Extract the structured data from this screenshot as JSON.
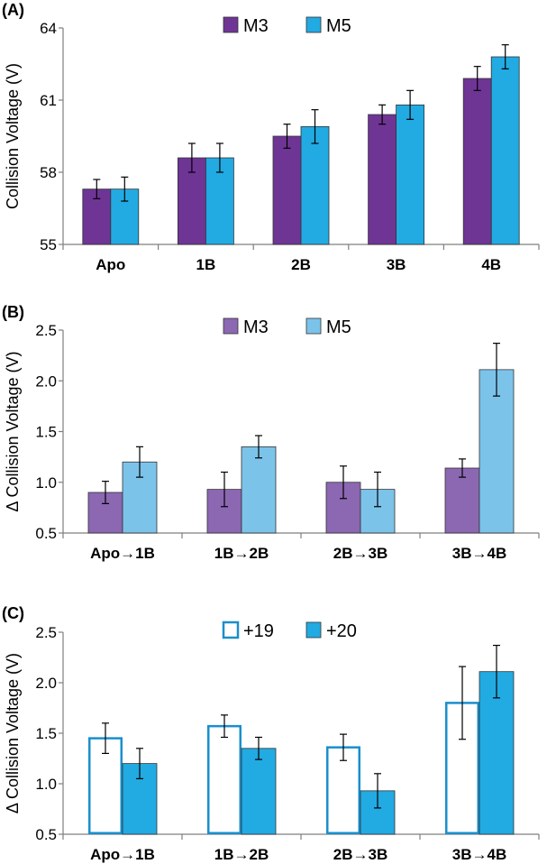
{
  "chart_data": [
    {
      "type": "bar",
      "panel_label": "(A)",
      "ylabel": "Collision Voltage (V)",
      "ylim": [
        55,
        64
      ],
      "yticks": [
        "55",
        "58",
        "61",
        "64"
      ],
      "categories": [
        "Apo",
        "1B",
        "2B",
        "3B",
        "4B"
      ],
      "series": [
        {
          "name": "M3",
          "values": [
            57.3,
            58.6,
            59.5,
            60.4,
            61.9
          ],
          "errors": [
            0.4,
            0.6,
            0.5,
            0.4,
            0.5
          ],
          "color": "#6e3595",
          "fill": "solid"
        },
        {
          "name": "M5",
          "values": [
            57.3,
            58.6,
            59.9,
            60.8,
            62.8
          ],
          "errors": [
            0.5,
            0.6,
            0.7,
            0.6,
            0.5
          ],
          "color": "#22aae2",
          "fill": "solid"
        }
      ],
      "legend_position": "top-center",
      "grid": false
    },
    {
      "type": "bar",
      "panel_label": "(B)",
      "ylabel": "Δ Collision Voltage (V)",
      "ylim": [
        0.5,
        2.5
      ],
      "yticks": [
        "0.5",
        "1.0",
        "1.5",
        "2.0",
        "2.5"
      ],
      "categories": [
        "Apo→1B",
        "1B→2B",
        "2B→3B",
        "3B→4B"
      ],
      "series": [
        {
          "name": "M3",
          "values": [
            0.9,
            0.93,
            1.0,
            1.14
          ],
          "errors": [
            0.11,
            0.17,
            0.16,
            0.09
          ],
          "color": "#8c67b2",
          "fill": "solid"
        },
        {
          "name": "M5",
          "values": [
            1.2,
            1.35,
            0.93,
            2.11
          ],
          "errors": [
            0.15,
            0.11,
            0.17,
            0.26
          ],
          "color": "#7cc3ea",
          "fill": "solid"
        }
      ],
      "legend_position": "top-center",
      "grid": false
    },
    {
      "type": "bar",
      "panel_label": "(C)",
      "ylabel": "Δ Collision Voltage (V)",
      "ylim": [
        0.5,
        2.5
      ],
      "yticks": [
        "0.5",
        "1.0",
        "1.5",
        "2.0",
        "2.5"
      ],
      "categories": [
        "Apo→1B",
        "1B→2B",
        "2B→3B",
        "3B→4B"
      ],
      "series": [
        {
          "name": "+19",
          "values": [
            1.45,
            1.57,
            1.36,
            1.8
          ],
          "errors": [
            0.15,
            0.11,
            0.13,
            0.36
          ],
          "color": "#1a8fcc",
          "fill": "open"
        },
        {
          "name": "+20",
          "values": [
            1.2,
            1.35,
            0.93,
            2.11
          ],
          "errors": [
            0.15,
            0.11,
            0.17,
            0.26
          ],
          "color": "#22aae2",
          "fill": "solid"
        }
      ],
      "legend_position": "top-center",
      "grid": false
    }
  ]
}
